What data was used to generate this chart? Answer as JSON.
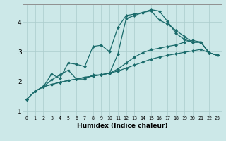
{
  "xlabel": "Humidex (Indice chaleur)",
  "bg_color": "#cce8e8",
  "grid_color": "#aacccc",
  "line_color": "#1a6b6b",
  "xlim": [
    -0.5,
    23.5
  ],
  "ylim": [
    0.85,
    4.6
  ],
  "xticks": [
    0,
    1,
    2,
    3,
    4,
    5,
    6,
    7,
    8,
    9,
    10,
    11,
    12,
    13,
    14,
    15,
    16,
    17,
    18,
    19,
    20,
    21,
    22,
    23
  ],
  "yticks": [
    1,
    2,
    3,
    4
  ],
  "line1_x": [
    0,
    1,
    2,
    3,
    4,
    5,
    6,
    7,
    8,
    9,
    10,
    11,
    12,
    13,
    14,
    15,
    16,
    17,
    18,
    19,
    20,
    21,
    22,
    23
  ],
  "line1_y": [
    1.4,
    1.67,
    1.82,
    1.9,
    1.97,
    2.03,
    2.08,
    2.14,
    2.18,
    2.23,
    2.28,
    2.35,
    2.45,
    2.55,
    2.65,
    2.75,
    2.82,
    2.88,
    2.93,
    2.98,
    3.03,
    3.08,
    2.97,
    2.88
  ],
  "line2_x": [
    0,
    1,
    2,
    3,
    4,
    5,
    6,
    7,
    8,
    9,
    10,
    11,
    12,
    13,
    14,
    15,
    16,
    17,
    18,
    19,
    20,
    21,
    22,
    23
  ],
  "line2_y": [
    1.4,
    1.67,
    1.82,
    1.9,
    1.97,
    2.03,
    2.08,
    2.14,
    2.18,
    2.23,
    2.28,
    2.42,
    2.62,
    2.82,
    2.97,
    3.07,
    3.12,
    3.18,
    3.23,
    3.32,
    3.38,
    3.33,
    2.97,
    2.88
  ],
  "line3_x": [
    0,
    1,
    2,
    3,
    4,
    5,
    6,
    7,
    8,
    9,
    10,
    11,
    12,
    13,
    14,
    15,
    16,
    17,
    18,
    19,
    20,
    21,
    22,
    23
  ],
  "line3_y": [
    1.4,
    1.67,
    1.82,
    2.25,
    2.1,
    2.62,
    2.58,
    2.5,
    3.18,
    3.22,
    3.0,
    3.82,
    4.22,
    4.27,
    4.32,
    4.38,
    4.07,
    3.93,
    3.72,
    3.52,
    3.32,
    3.32,
    2.97,
    2.88
  ],
  "line4_x": [
    2,
    3,
    4,
    5,
    6,
    7,
    8,
    9,
    10,
    11,
    12,
    13,
    14,
    15,
    16,
    17,
    18,
    19,
    20,
    21,
    22,
    23
  ],
  "line4_y": [
    1.82,
    2.05,
    2.22,
    2.38,
    2.08,
    2.08,
    2.22,
    2.22,
    2.28,
    2.92,
    4.12,
    4.22,
    4.32,
    4.42,
    4.37,
    4.02,
    3.62,
    3.42,
    3.32,
    3.32,
    2.97,
    2.88
  ]
}
